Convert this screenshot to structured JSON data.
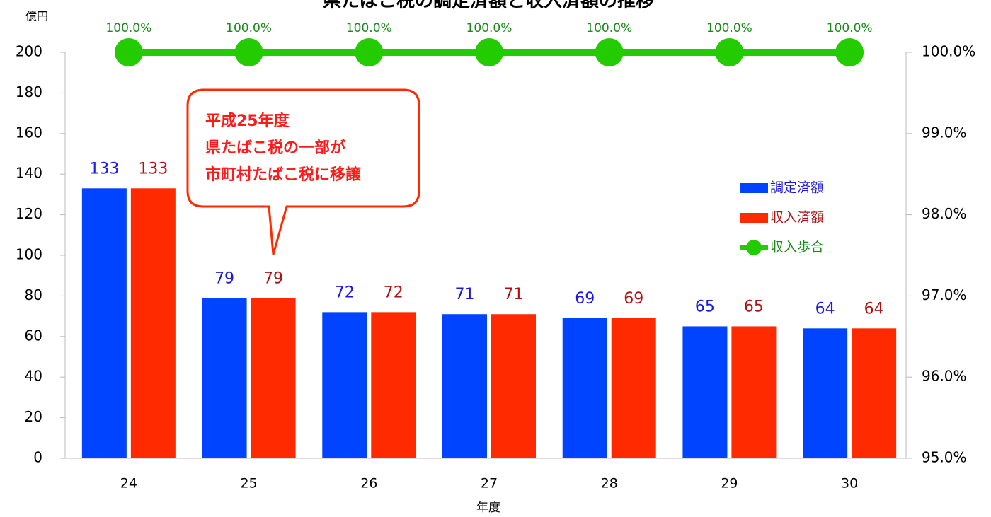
{
  "chart_data": {
    "type": "bar",
    "title": "県たばこ税の調定済額と収入済額の推移",
    "y_axis_label": "億円",
    "x_axis_label": "年度",
    "categories": [
      "24",
      "25",
      "26",
      "27",
      "28",
      "29",
      "30"
    ],
    "series": [
      {
        "name": "調定済額",
        "color": "#0044ff",
        "label_color": "#1a1adf",
        "values": [
          133,
          79,
          72,
          71,
          69,
          65,
          64
        ]
      },
      {
        "name": "収入済額",
        "color": "#ff2a00",
        "label_color": "#b01010",
        "values": [
          133,
          79,
          72,
          71,
          69,
          65,
          64
        ]
      },
      {
        "name": "収入歩合",
        "type": "line",
        "axis": "y2",
        "color": "#22cc00",
        "label_color": "#1a8a1a",
        "values": [
          100,
          100,
          100,
          100,
          100,
          100,
          100
        ],
        "value_labels": [
          "100.0%",
          "100.0%",
          "100.0%",
          "100.0%",
          "100.0%",
          "100.0%",
          "100.0%"
        ]
      }
    ],
    "ylim": [
      0,
      200
    ],
    "yticks": [
      0,
      20,
      40,
      60,
      80,
      100,
      120,
      140,
      160,
      180,
      200
    ],
    "y2lim": [
      95,
      100
    ],
    "y2ticks": [
      {
        "value": 95,
        "label": "95.0%"
      },
      {
        "value": 96,
        "label": "96.0%"
      },
      {
        "value": 97,
        "label": "97.0%"
      },
      {
        "value": 98,
        "label": "98.0%"
      },
      {
        "value": 99,
        "label": "99.0%"
      },
      {
        "value": 100,
        "label": "100.0%"
      }
    ],
    "annotation": [
      "平成25年度",
      "県たばこ税の一部が",
      "市町村たばこ税に移譲"
    ],
    "legend": "right"
  }
}
